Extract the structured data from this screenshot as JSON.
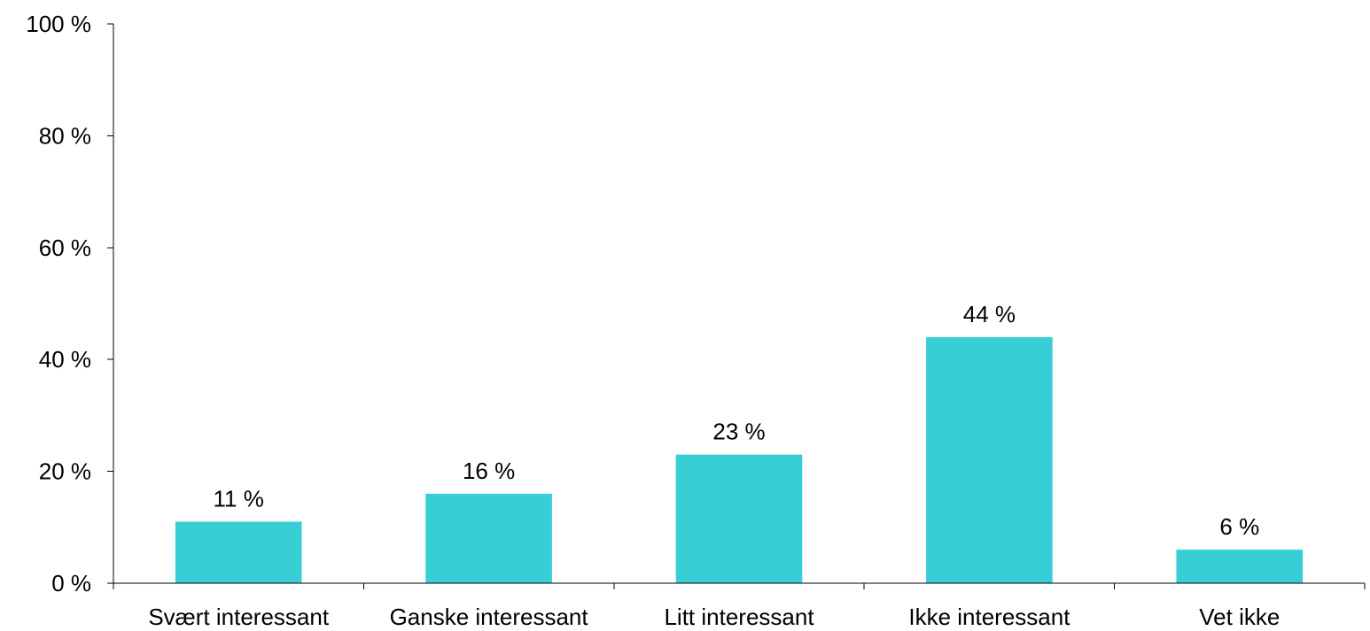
{
  "chart_data": {
    "type": "bar",
    "categories": [
      "Svært interessant",
      "Ganske interessant",
      "Litt interessant",
      "Ikke interessant",
      "Vet ikke"
    ],
    "values": [
      11,
      16,
      23,
      44,
      6
    ],
    "value_labels": [
      "11 %",
      "16 %",
      "23 %",
      "44 %",
      "6 %"
    ],
    "ylim": [
      0,
      100
    ],
    "yticks": [
      0,
      20,
      40,
      60,
      80,
      100
    ],
    "ytick_labels": [
      "0 %",
      "20 %",
      "40 %",
      "60 %",
      "80 %",
      "100 %"
    ],
    "bar_color": "#38CED6",
    "grid": false,
    "legend": "none"
  }
}
